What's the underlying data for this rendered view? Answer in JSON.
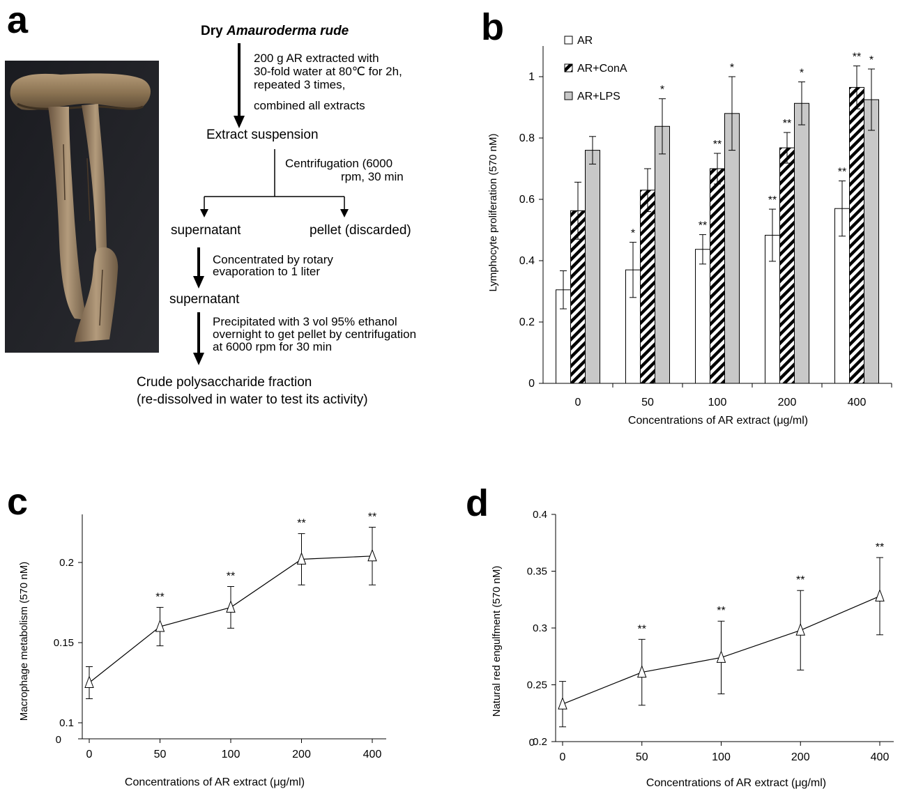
{
  "panel_labels": {
    "a": "a",
    "b": "b",
    "c": "c",
    "d": "d"
  },
  "flowchart": {
    "title_prefix": "Dry",
    "title_italic": "Amauroderma rude",
    "step1": [
      "200 g  AR extracted with",
      "30-fold water at 80℃ for 2h,",
      "repeated 3 times,",
      "combined all extracts"
    ],
    "node1": "Extract suspension",
    "step2": [
      "Centrifugation (6000",
      "rpm, 30 min"
    ],
    "branch_left": "supernatant",
    "branch_right": "pellet (discarded)",
    "step3": [
      "Concentrated by rotary",
      "evaporation to 1 liter"
    ],
    "node2": "supernatant",
    "step4": [
      "Precipitated with 3 vol 95% ethanol",
      "overnight to get pellet by centrifugation",
      "at 6000 rpm for 30 min"
    ],
    "final": [
      "Crude polysaccharide fraction",
      "(re-dissolved in water to test its activity)"
    ]
  },
  "chart_data": [
    {
      "panel": "b",
      "type": "bar",
      "categories": [
        "0",
        "50",
        "100",
        "200",
        "400"
      ],
      "series": [
        {
          "name": "AR",
          "values": [
            0.305,
            0.37,
            0.437,
            0.483,
            0.57
          ],
          "errors": [
            0.062,
            0.09,
            0.048,
            0.085,
            0.09
          ],
          "marks": [
            "",
            "*",
            "**",
            "**",
            "**"
          ]
        },
        {
          "name": "AR+ConA",
          "values": [
            0.563,
            0.63,
            0.7,
            0.768,
            0.965
          ],
          "errors": [
            0.093,
            0.07,
            0.05,
            0.05,
            0.07
          ],
          "marks": [
            "",
            "",
            "**",
            "**",
            "**"
          ]
        },
        {
          "name": "AR+LPS",
          "values": [
            0.76,
            0.838,
            0.88,
            0.913,
            0.925
          ],
          "errors": [
            0.045,
            0.09,
            0.12,
            0.07,
            0.1
          ],
          "marks": [
            "",
            "*",
            "*",
            "*",
            "*"
          ]
        }
      ],
      "xlabel": "Concentrations of AR extract (μg/ml)",
      "ylabel": "Lymphocyte proliferation (570 nM)",
      "ylim": [
        0,
        1.1
      ],
      "yticks": [
        0,
        0.2,
        0.4,
        0.6,
        0.8,
        1
      ],
      "ytick_labels": [
        "0",
        "0.2",
        "0.4",
        "0.6",
        "0.8",
        "1"
      ],
      "legend_position": "top-left",
      "colors": {
        "AR": "#ffffff",
        "AR+ConA": "#000000",
        "AR+LPS": "#c8c8c8"
      },
      "grid": false
    },
    {
      "panel": "c",
      "type": "line",
      "x": [
        "0",
        "50",
        "100",
        "200",
        "400"
      ],
      "y": [
        0.125,
        0.16,
        0.172,
        0.202,
        0.204
      ],
      "errors": [
        0.01,
        0.012,
        0.013,
        0.016,
        0.018
      ],
      "marks": [
        "",
        "**",
        "**",
        "**",
        "**"
      ],
      "xlabel": "Concentrations of AR extract (μg/ml)",
      "ylabel": "Macrophage metabolism (570 nM)",
      "ylim": [
        0.09,
        0.23
      ],
      "yticks": [
        0.1,
        0.15,
        0.2
      ],
      "ytick_labels": [
        "0.1",
        "0.15",
        "0.2"
      ],
      "zero_label": "0",
      "marker": "triangle"
    },
    {
      "panel": "d",
      "type": "line",
      "x": [
        "0",
        "50",
        "100",
        "200",
        "400"
      ],
      "y": [
        0.233,
        0.261,
        0.274,
        0.298,
        0.328
      ],
      "errors": [
        0.02,
        0.029,
        0.032,
        0.035,
        0.034
      ],
      "marks": [
        "",
        "**",
        "**",
        "**",
        "**"
      ],
      "xlabel": "Concentrations of AR extract (μg/ml)",
      "ylabel": "Natural red engulfment (570 nM)",
      "ylim": [
        0.2,
        0.4
      ],
      "yticks": [
        0.2,
        0.25,
        0.3,
        0.35,
        0.4
      ],
      "ytick_labels": [
        "0.2",
        "0.25",
        "0.3",
        "0.35",
        "0.4"
      ],
      "zero_label": "0",
      "marker": "triangle"
    }
  ]
}
